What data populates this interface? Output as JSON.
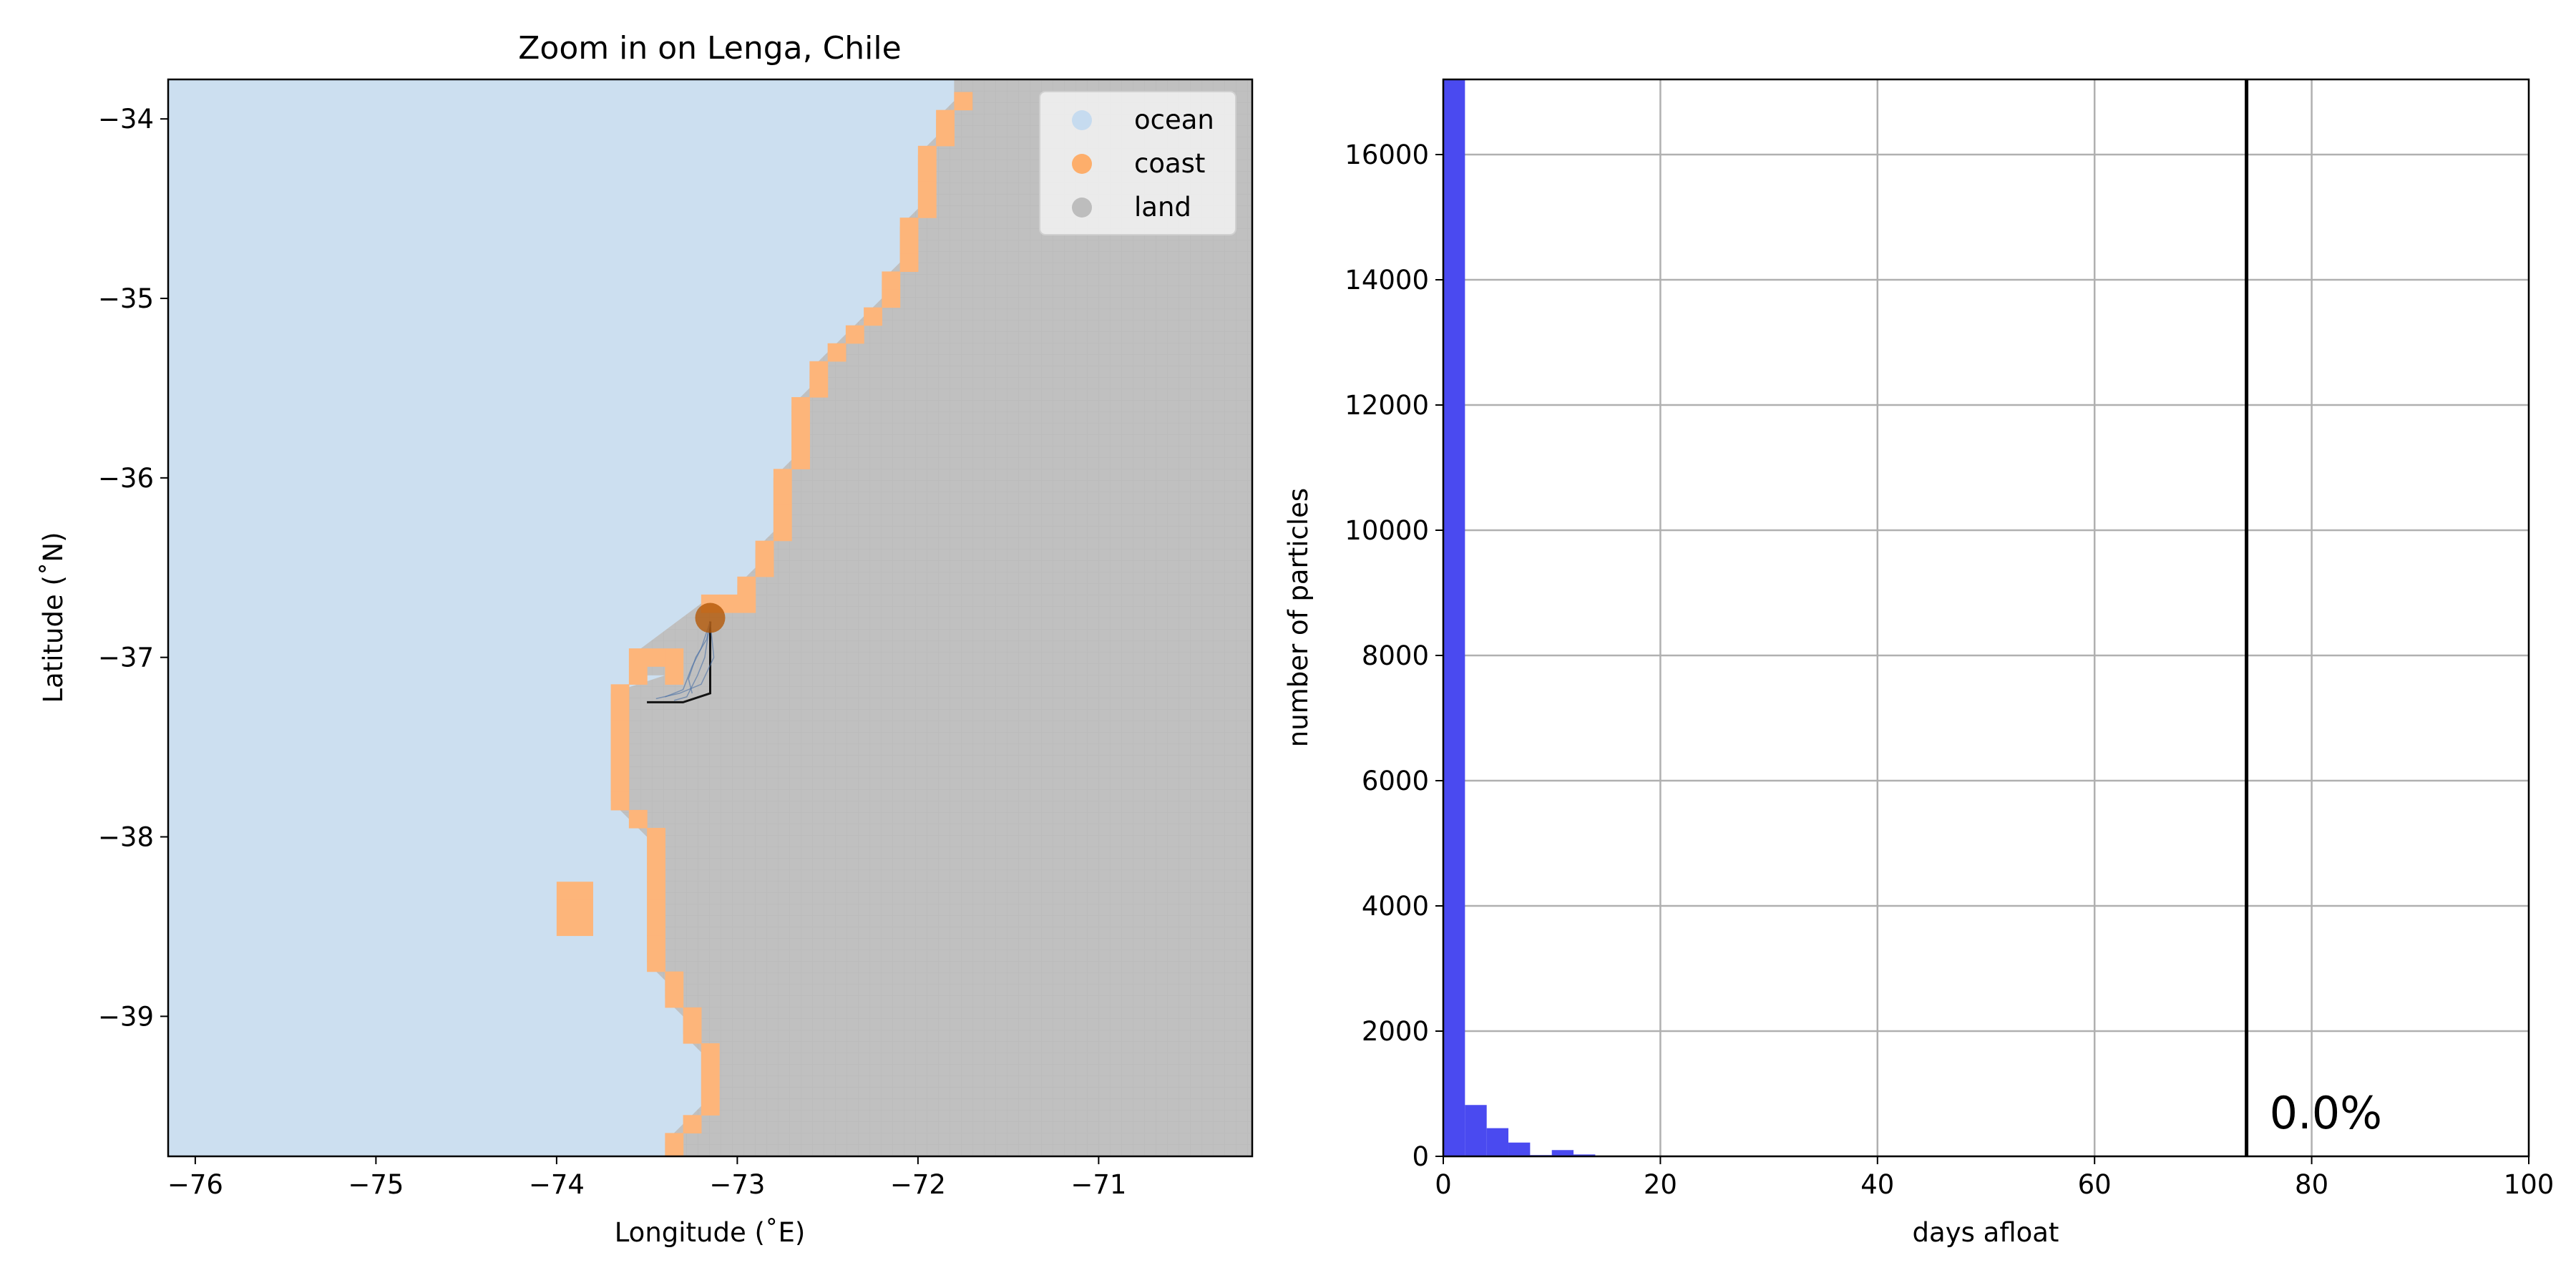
{
  "chart_data": [
    {
      "type": "map",
      "title": "Zoom in on Lenga, Chile",
      "xlabel": "Longitude (˚E)",
      "ylabel": "Latitude (˚N)",
      "xlim": [
        -76.15,
        -70.15
      ],
      "ylim": [
        -39.78,
        -33.78
      ],
      "xticks": [
        -76,
        -75,
        -74,
        -73,
        -72,
        -71
      ],
      "xtick_labels": [
        "−76",
        "−75",
        "−74",
        "−73",
        "−72",
        "−71"
      ],
      "yticks": [
        -34,
        -35,
        -36,
        -37,
        -38,
        -39
      ],
      "ytick_labels": [
        "−34",
        "−35",
        "−36",
        "−37",
        "−38",
        "−39"
      ],
      "legend": {
        "position": "top-right",
        "entries": [
          {
            "label": "ocean",
            "color": "#c6dbef"
          },
          {
            "label": "coast",
            "color": "#fdae6b"
          },
          {
            "label": "land",
            "color": "#bdbdbd"
          }
        ]
      },
      "colors": {
        "ocean": "#ccdff0",
        "coast": "#fdb57a",
        "land": "#c0c0c0",
        "release": "#b35806"
      },
      "coast_cells": [
        [
          -71.75,
          -33.9
        ],
        [
          -71.85,
          -34.0
        ],
        [
          -71.85,
          -34.1
        ],
        [
          -71.95,
          -34.2
        ],
        [
          -71.95,
          -34.3
        ],
        [
          -71.95,
          -34.4
        ],
        [
          -71.95,
          -34.5
        ],
        [
          -72.05,
          -34.6
        ],
        [
          -72.05,
          -34.7
        ],
        [
          -72.05,
          -34.8
        ],
        [
          -72.15,
          -34.9
        ],
        [
          -72.15,
          -35.0
        ],
        [
          -72.25,
          -35.1
        ],
        [
          -72.35,
          -35.2
        ],
        [
          -72.45,
          -35.3
        ],
        [
          -72.55,
          -35.4
        ],
        [
          -72.55,
          -35.5
        ],
        [
          -72.65,
          -35.6
        ],
        [
          -72.65,
          -35.7
        ],
        [
          -72.65,
          -35.8
        ],
        [
          -72.65,
          -35.9
        ],
        [
          -72.75,
          -36.0
        ],
        [
          -72.75,
          -36.1
        ],
        [
          -72.75,
          -36.2
        ],
        [
          -72.75,
          -36.3
        ],
        [
          -72.85,
          -36.4
        ],
        [
          -72.85,
          -36.5
        ],
        [
          -72.95,
          -36.6
        ],
        [
          -72.95,
          -36.7
        ],
        [
          -73.05,
          -36.7
        ],
        [
          -73.15,
          -36.7
        ],
        [
          -73.55,
          -37.0
        ],
        [
          -73.45,
          -37.0
        ],
        [
          -73.35,
          -37.0
        ],
        [
          -73.55,
          -37.1
        ],
        [
          -73.35,
          -37.1
        ],
        [
          -73.65,
          -37.2
        ],
        [
          -73.65,
          -37.3
        ],
        [
          -73.65,
          -37.4
        ],
        [
          -73.65,
          -37.5
        ],
        [
          -73.65,
          -37.6
        ],
        [
          -73.65,
          -37.7
        ],
        [
          -73.65,
          -37.8
        ],
        [
          -73.55,
          -37.9
        ],
        [
          -73.45,
          -38.0
        ],
        [
          -73.45,
          -38.1
        ],
        [
          -73.45,
          -38.2
        ],
        [
          -73.45,
          -38.3
        ],
        [
          -73.45,
          -38.4
        ],
        [
          -73.45,
          -38.5
        ],
        [
          -73.45,
          -38.6
        ],
        [
          -73.45,
          -38.7
        ],
        [
          -73.35,
          -38.8
        ],
        [
          -73.35,
          -38.9
        ],
        [
          -73.25,
          -39.0
        ],
        [
          -73.25,
          -39.1
        ],
        [
          -73.15,
          -39.2
        ],
        [
          -73.15,
          -39.3
        ],
        [
          -73.15,
          -39.4
        ],
        [
          -73.15,
          -39.5
        ],
        [
          -73.25,
          -39.6
        ],
        [
          -73.35,
          -39.7
        ],
        [
          -73.35,
          -39.8
        ],
        [
          -73.95,
          -38.3
        ],
        [
          -73.85,
          -38.3
        ],
        [
          -73.95,
          -38.4
        ],
        [
          -73.85,
          -38.4
        ],
        [
          -73.95,
          -38.5
        ],
        [
          -73.85,
          -38.5
        ]
      ],
      "release_point": {
        "lon": -73.15,
        "lat": -36.78
      },
      "trajectories": [
        [
          [
            -73.15,
            -36.8
          ],
          [
            -73.15,
            -37.2
          ],
          [
            -73.3,
            -37.25
          ],
          [
            -73.5,
            -37.25
          ]
        ],
        [
          [
            -73.15,
            -36.8
          ],
          [
            -73.18,
            -37.0
          ],
          [
            -73.22,
            -37.1
          ],
          [
            -73.28,
            -37.22
          ],
          [
            -73.35,
            -37.24
          ]
        ],
        [
          [
            -73.15,
            -36.8
          ],
          [
            -73.2,
            -36.95
          ],
          [
            -73.25,
            -37.05
          ],
          [
            -73.3,
            -37.18
          ],
          [
            -73.4,
            -37.22
          ]
        ],
        [
          [
            -73.15,
            -36.8
          ],
          [
            -73.17,
            -36.9
          ],
          [
            -73.23,
            -37.0
          ],
          [
            -73.27,
            -37.12
          ],
          [
            -73.25,
            -37.2
          ]
        ],
        [
          [
            -73.15,
            -36.8
          ],
          [
            -73.13,
            -37.0
          ],
          [
            -73.2,
            -37.15
          ],
          [
            -73.32,
            -37.2
          ],
          [
            -73.45,
            -37.23
          ]
        ]
      ]
    },
    {
      "type": "bar",
      "xlabel": "days afloat",
      "ylabel": "number of particles",
      "xlim": [
        0,
        100
      ],
      "ylim": [
        0,
        17200
      ],
      "xticks": [
        0,
        20,
        40,
        60,
        80,
        100
      ],
      "yticks": [
        0,
        2000,
        4000,
        6000,
        8000,
        10000,
        12000,
        14000,
        16000
      ],
      "grid": true,
      "bar_color": "#4a4af0",
      "bin_edges": [
        0,
        2,
        4,
        6,
        8,
        10,
        12,
        14,
        16
      ],
      "values": [
        17200,
        820,
        450,
        220,
        20,
        100,
        30,
        10
      ],
      "vline": {
        "x": 74
      },
      "annotation": "0.0%"
    }
  ]
}
